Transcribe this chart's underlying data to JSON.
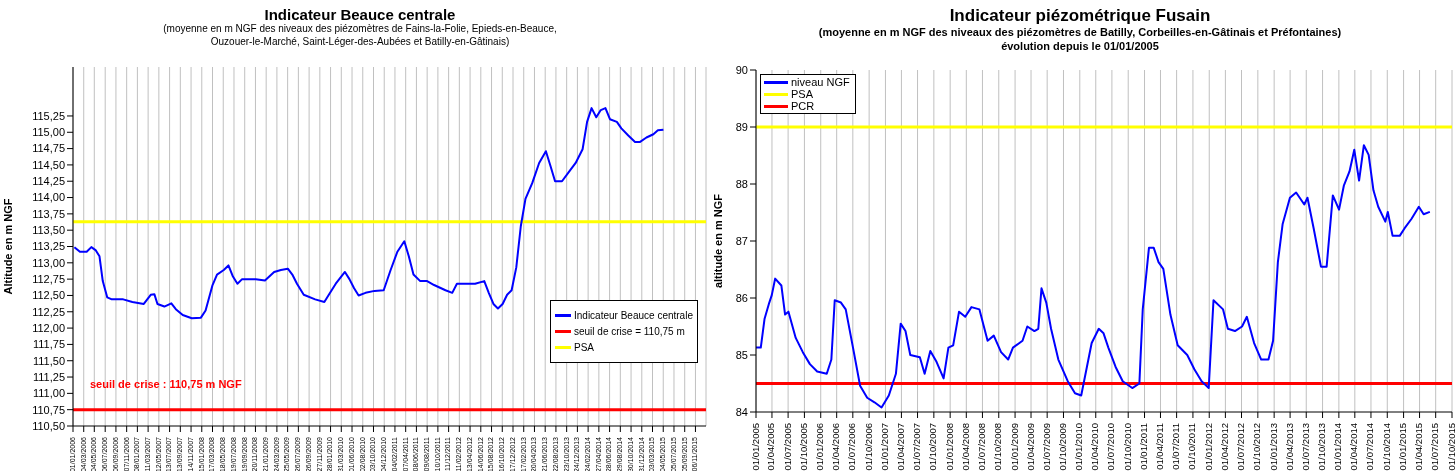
{
  "chart_data": [
    {
      "type": "line",
      "title": "Indicateur Beauce centrale",
      "subtitle": "(moyenne en m NGF des niveaux des piézomètres de Fains-la-Folie, Epieds-en-Beauce, Ouzouer-le-Marché, Saint-Léger-des-Aubées et Batilly-en-Gâtinais)",
      "ylabel": "Altitude en m NGF",
      "grid": "x",
      "legend": "bottom right",
      "annotations": [
        "seuil de crise : 110,75 m NGF"
      ],
      "xlim": [
        "2006-01-01",
        "2016-01-06"
      ],
      "ylim": [
        110.5,
        116
      ],
      "yticks": [
        {
          "value": 110.5,
          "label": "110,50"
        },
        {
          "value": 110.75,
          "label": "110,75"
        },
        {
          "value": 111,
          "label": "111,00"
        },
        {
          "value": 111.25,
          "label": "111,25"
        },
        {
          "value": 111.5,
          "label": "111,50"
        },
        {
          "value": 111.75,
          "label": "111,75"
        },
        {
          "value": 112,
          "label": "112,00"
        },
        {
          "value": 112.25,
          "label": "112,25"
        },
        {
          "value": 112.5,
          "label": "112,50"
        },
        {
          "value": 112.75,
          "label": "112,75"
        },
        {
          "value": 113,
          "label": "113,00"
        },
        {
          "value": 113.25,
          "label": "113,25"
        },
        {
          "value": 113.5,
          "label": "113,50"
        },
        {
          "value": 113.75,
          "label": "113,75"
        },
        {
          "value": 114,
          "label": "114,00"
        },
        {
          "value": 114.25,
          "label": "114,25"
        },
        {
          "value": 114.5,
          "label": "114,50"
        },
        {
          "value": 114.75,
          "label": "114,75"
        },
        {
          "value": 115,
          "label": "115,00"
        },
        {
          "value": 115.25,
          "label": "115,25"
        }
      ],
      "xticks": [
        {
          "value": "2006-01-01",
          "label": "01/01/2006"
        },
        {
          "value": "2006-03-04",
          "label": "04/03/2006"
        },
        {
          "value": "2006-05-04",
          "label": "04/05/2006"
        },
        {
          "value": "2006-07-06",
          "label": "06/07/2006"
        },
        {
          "value": "2006-09-06",
          "label": "06/09/2006"
        },
        {
          "value": "2006-11-07",
          "label": "07/11/2006"
        },
        {
          "value": "2007-01-08",
          "label": "08/01/2007"
        },
        {
          "value": "2007-03-11",
          "label": "11/03/2007"
        },
        {
          "value": "2007-05-12",
          "label": "12/05/2007"
        },
        {
          "value": "2007-07-13",
          "label": "13/07/2007"
        },
        {
          "value": "2007-09-13",
          "label": "13/09/2007"
        },
        {
          "value": "2007-11-14",
          "label": "14/11/2007"
        },
        {
          "value": "2008-01-15",
          "label": "15/01/2008"
        },
        {
          "value": "2008-03-17",
          "label": "17/03/2008"
        },
        {
          "value": "2008-05-18",
          "label": "18/05/2008"
        },
        {
          "value": "2008-07-19",
          "label": "19/07/2008"
        },
        {
          "value": "2008-09-19",
          "label": "19/09/2008"
        },
        {
          "value": "2008-11-20",
          "label": "20/11/2008"
        },
        {
          "value": "2009-01-21",
          "label": "21/01/2009"
        },
        {
          "value": "2009-03-24",
          "label": "24/03/2009"
        },
        {
          "value": "2009-05-25",
          "label": "25/05/2009"
        },
        {
          "value": "2009-07-26",
          "label": "26/07/2009"
        },
        {
          "value": "2009-09-26",
          "label": "26/09/2009"
        },
        {
          "value": "2009-11-27",
          "label": "27/11/2009"
        },
        {
          "value": "2010-01-28",
          "label": "28/01/2010"
        },
        {
          "value": "2010-03-31",
          "label": "31/03/2010"
        },
        {
          "value": "2010-06-01",
          "label": "01/06/2010"
        },
        {
          "value": "2010-08-02",
          "label": "02/08/2010"
        },
        {
          "value": "2010-10-03",
          "label": "03/10/2010"
        },
        {
          "value": "2010-12-04",
          "label": "04/12/2010"
        },
        {
          "value": "2011-02-04",
          "label": "04/02/2011"
        },
        {
          "value": "2011-04-07",
          "label": "07/04/2011"
        },
        {
          "value": "2011-06-08",
          "label": "08/06/2011"
        },
        {
          "value": "2011-08-09",
          "label": "09/08/2011"
        },
        {
          "value": "2011-10-10",
          "label": "10/10/2011"
        },
        {
          "value": "2011-12-11",
          "label": "11/12/2011"
        },
        {
          "value": "2012-02-11",
          "label": "11/02/2012"
        },
        {
          "value": "2012-04-13",
          "label": "13/04/2012"
        },
        {
          "value": "2012-06-14",
          "label": "14/06/2012"
        },
        {
          "value": "2012-08-15",
          "label": "15/08/2012"
        },
        {
          "value": "2012-10-16",
          "label": "16/10/2012"
        },
        {
          "value": "2012-12-17",
          "label": "17/12/2012"
        },
        {
          "value": "2013-02-17",
          "label": "17/02/2013"
        },
        {
          "value": "2013-04-20",
          "label": "20/04/2013"
        },
        {
          "value": "2013-06-21",
          "label": "21/06/2013"
        },
        {
          "value": "2013-08-22",
          "label": "22/08/2013"
        },
        {
          "value": "2013-10-23",
          "label": "23/10/2013"
        },
        {
          "value": "2013-12-24",
          "label": "24/12/2013"
        },
        {
          "value": "2014-02-24",
          "label": "24/02/2014"
        },
        {
          "value": "2014-04-27",
          "label": "27/04/2014"
        },
        {
          "value": "2014-06-28",
          "label": "28/06/2014"
        },
        {
          "value": "2014-08-29",
          "label": "29/08/2014"
        },
        {
          "value": "2014-10-30",
          "label": "30/10/2014"
        },
        {
          "value": "2014-12-31",
          "label": "31/12/2014"
        },
        {
          "value": "2015-03-03",
          "label": "03/03/2015"
        },
        {
          "value": "2015-05-04",
          "label": "04/05/2015"
        },
        {
          "value": "2015-07-05",
          "label": "05/07/2015"
        },
        {
          "value": "2015-09-05",
          "label": "05/09/2015"
        },
        {
          "value": "2015-11-06",
          "label": "06/11/2015"
        }
      ],
      "ref_lines": [
        {
          "axis": "y",
          "value": 110.75,
          "label": "seuil de crise = 110,75 m",
          "color": "#ff0000"
        },
        {
          "axis": "y",
          "value": 113.63,
          "label": "PSA",
          "color": "#ffff00"
        }
      ],
      "series": [
        {
          "name": "Indicateur Beauce centrale",
          "color": "#0000ff",
          "x": [
            "2006-01-09",
            "2006-02-10",
            "2006-03-21",
            "2006-04-17",
            "2006-05-13",
            "2006-06-03",
            "2006-06-22",
            "2006-07-18",
            "2006-08-13",
            "2006-10-18",
            "2006-12-10",
            "2007-02-14",
            "2007-03-26",
            "2007-04-16",
            "2007-05-04",
            "2007-06-13",
            "2007-07-23",
            "2007-08-18",
            "2007-09-27",
            "2007-11-18",
            "2008-01-10",
            "2008-02-06",
            "2008-03-16",
            "2008-04-12",
            "2008-05-21",
            "2008-06-17",
            "2008-07-13",
            "2008-08-08",
            "2008-09-04",
            "2008-11-22",
            "2009-01-14",
            "2009-03-08",
            "2009-04-16",
            "2009-05-26",
            "2009-06-21",
            "2009-07-18",
            "2009-08-26",
            "2009-10-31",
            "2009-12-23",
            "2010-01-18",
            "2010-02-27",
            "2010-04-21",
            "2010-05-17",
            "2010-06-13",
            "2010-07-09",
            "2010-08-18",
            "2010-10-09",
            "2010-12-01",
            "2011-01-10",
            "2011-02-18",
            "2011-03-30",
            "2011-04-25",
            "2011-05-22",
            "2011-06-30",
            "2011-08-09",
            "2011-09-18",
            "2011-11-23",
            "2012-01-01",
            "2012-01-28",
            "2012-04-03",
            "2012-05-12",
            "2012-07-04",
            "2012-07-30",
            "2012-08-26",
            "2012-09-21",
            "2012-10-18",
            "2012-11-13",
            "2012-12-09",
            "2013-01-05",
            "2013-01-31",
            "2013-02-27",
            "2013-04-07",
            "2013-05-17",
            "2013-06-25",
            "2013-07-22",
            "2013-08-17",
            "2013-09-26",
            "2013-11-04",
            "2013-12-14",
            "2014-01-23",
            "2014-02-18",
            "2014-03-16",
            "2014-04-12",
            "2014-05-08",
            "2014-06-04",
            "2014-06-30",
            "2014-08-09",
            "2014-09-04",
            "2014-10-14",
            "2014-11-22",
            "2014-12-19",
            "2015-01-27",
            "2015-03-08",
            "2015-04-03",
            "2015-05-05"
          ],
          "values": [
            113.24,
            113.17,
            113.17,
            113.24,
            113.19,
            113.1,
            112.72,
            112.47,
            112.44,
            112.44,
            112.4,
            112.37,
            112.51,
            112.52,
            112.37,
            112.33,
            112.38,
            112.29,
            112.2,
            112.15,
            112.16,
            112.27,
            112.65,
            112.82,
            112.89,
            112.96,
            112.79,
            112.68,
            112.75,
            112.75,
            112.73,
            112.86,
            112.89,
            112.91,
            112.82,
            112.68,
            112.51,
            112.44,
            112.4,
            112.51,
            112.68,
            112.86,
            112.75,
            112.61,
            112.5,
            112.54,
            112.57,
            112.58,
            112.89,
            113.17,
            113.33,
            113.1,
            112.82,
            112.72,
            112.72,
            112.66,
            112.58,
            112.54,
            112.68,
            112.68,
            112.68,
            112.72,
            112.54,
            112.37,
            112.3,
            112.37,
            112.51,
            112.58,
            112.93,
            113.56,
            113.98,
            114.22,
            114.53,
            114.71,
            114.48,
            114.25,
            114.25,
            114.39,
            114.53,
            114.74,
            115.16,
            115.37,
            115.23,
            115.34,
            115.37,
            115.2,
            115.16,
            115.06,
            114.95,
            114.85,
            114.85,
            114.92,
            114.97,
            115.03,
            115.04
          ]
        }
      ]
    },
    {
      "type": "line",
      "title": "Indicateur piézométrique Fusain",
      "subtitle": "(moyenne en m NGF des niveaux des piézomètres de Batilly, Corbeilles-en-Gâtinais et Préfontaines)\névolution depuis le 01/01/2005",
      "ylabel": "altitude en m NGF",
      "grid": "x",
      "legend": "top left",
      "xlim": [
        "2005-01-01",
        "2015-10-01"
      ],
      "ylim": [
        84,
        90
      ],
      "yticks": [
        84,
        85,
        86,
        87,
        88,
        89,
        90
      ],
      "xticks": [
        {
          "value": "2005-01-01",
          "label": "01/01/2005"
        },
        {
          "value": "2005-04-01",
          "label": "01/04/2005"
        },
        {
          "value": "2005-07-01",
          "label": "01/07/2005"
        },
        {
          "value": "2005-10-01",
          "label": "01/10/2005"
        },
        {
          "value": "2006-01-01",
          "label": "01/01/2006"
        },
        {
          "value": "2006-04-01",
          "label": "01/04/2006"
        },
        {
          "value": "2006-07-01",
          "label": "01/07/2006"
        },
        {
          "value": "2006-10-01",
          "label": "01/10/2006"
        },
        {
          "value": "2007-01-01",
          "label": "01/01/2007"
        },
        {
          "value": "2007-04-01",
          "label": "01/04/2007"
        },
        {
          "value": "2007-07-01",
          "label": "01/07/2007"
        },
        {
          "value": "2007-10-01",
          "label": "01/10/2007"
        },
        {
          "value": "2008-01-01",
          "label": "01/01/2008"
        },
        {
          "value": "2008-04-01",
          "label": "01/04/2008"
        },
        {
          "value": "2008-07-01",
          "label": "01/07/2008"
        },
        {
          "value": "2008-10-01",
          "label": "01/10/2008"
        },
        {
          "value": "2009-01-01",
          "label": "01/01/2009"
        },
        {
          "value": "2009-04-01",
          "label": "01/04/2009"
        },
        {
          "value": "2009-07-01",
          "label": "01/07/2009"
        },
        {
          "value": "2009-10-01",
          "label": "01/10/2009"
        },
        {
          "value": "2010-01-01",
          "label": "01/01/2010"
        },
        {
          "value": "2010-04-01",
          "label": "01/04/2010"
        },
        {
          "value": "2010-07-01",
          "label": "01/07/2010"
        },
        {
          "value": "2010-10-01",
          "label": "01/10/2010"
        },
        {
          "value": "2011-01-01",
          "label": "01/01/2011"
        },
        {
          "value": "2011-04-01",
          "label": "01/04/2011"
        },
        {
          "value": "2011-07-01",
          "label": "01/07/2011"
        },
        {
          "value": "2011-10-01",
          "label": "01/10/2011"
        },
        {
          "value": "2012-01-01",
          "label": "01/01/2012"
        },
        {
          "value": "2012-04-01",
          "label": "01/04/2012"
        },
        {
          "value": "2012-07-01",
          "label": "01/07/2012"
        },
        {
          "value": "2012-10-01",
          "label": "01/10/2012"
        },
        {
          "value": "2013-01-01",
          "label": "01/01/2013"
        },
        {
          "value": "2013-04-01",
          "label": "01/04/2013"
        },
        {
          "value": "2013-07-01",
          "label": "01/07/2013"
        },
        {
          "value": "2013-10-01",
          "label": "01/10/2013"
        },
        {
          "value": "2014-01-01",
          "label": "01/01/2014"
        },
        {
          "value": "2014-04-01",
          "label": "01/04/2014"
        },
        {
          "value": "2014-07-01",
          "label": "01/07/2014"
        },
        {
          "value": "2014-10-01",
          "label": "01/10/2014"
        },
        {
          "value": "2015-01-01",
          "label": "01/01/2015"
        },
        {
          "value": "2015-04-01",
          "label": "01/04/2015"
        },
        {
          "value": "2015-07-01",
          "label": "01/07/2015"
        },
        {
          "value": "2015-10-01",
          "label": "01/10/2015"
        }
      ],
      "ref_lines": [
        {
          "axis": "y",
          "value": 89,
          "label": "PSA",
          "color": "#ffff00"
        },
        {
          "axis": "y",
          "value": 84.5,
          "label": "PCR",
          "color": "#ff0000"
        }
      ],
      "series": [
        {
          "name": "niveau NGF",
          "color": "#0000ff",
          "x": [
            "2005-01-01",
            "2005-01-28",
            "2005-02-18",
            "2005-03-17",
            "2005-03-31",
            "2005-04-19",
            "2005-05-24",
            "2005-06-14",
            "2005-07-03",
            "2005-08-13",
            "2005-09-22",
            "2005-11-01",
            "2005-12-12",
            "2006-02-04",
            "2006-03-02",
            "2006-03-21",
            "2006-04-25",
            "2006-05-22",
            "2006-07-02",
            "2006-08-11",
            "2006-09-20",
            "2006-10-31",
            "2006-12-10",
            "2007-01-20",
            "2007-03-01",
            "2007-03-28",
            "2007-04-24",
            "2007-05-21",
            "2007-07-14",
            "2007-08-10",
            "2007-09-11",
            "2007-10-16",
            "2007-11-25",
            "2007-12-22",
            "2008-01-18",
            "2008-02-20",
            "2008-03-26",
            "2008-04-30",
            "2008-06-14",
            "2008-07-30",
            "2008-09-03",
            "2008-10-14",
            "2008-11-23",
            "2008-12-20",
            "2009-02-12",
            "2009-03-11",
            "2009-04-20",
            "2009-05-12",
            "2009-05-30",
            "2009-06-26",
            "2009-07-23",
            "2009-09-02",
            "2009-10-25",
            "2009-12-05",
            "2010-01-09",
            "2010-02-10",
            "2010-03-09",
            "2010-04-18",
            "2010-05-15",
            "2010-06-11",
            "2010-07-22",
            "2010-08-31",
            "2010-10-24",
            "2010-12-03",
            "2010-12-22",
            "2011-01-26",
            "2011-02-22",
            "2011-03-21",
            "2011-04-17",
            "2011-05-27",
            "2011-07-07",
            "2011-08-30",
            "2011-10-09",
            "2011-11-19",
            "2011-12-29",
            "2012-01-25",
            "2012-03-19",
            "2012-04-15",
            "2012-05-25",
            "2012-07-04",
            "2012-07-31",
            "2012-09-10",
            "2012-10-20",
            "2012-11-30",
            "2012-12-26",
            "2013-01-22",
            "2013-02-18",
            "2013-03-31",
            "2013-05-05",
            "2013-06-20",
            "2013-07-08",
            "2013-08-12",
            "2013-09-22",
            "2013-10-24",
            "2013-11-28",
            "2014-01-02",
            "2014-01-29",
            "2014-03-02",
            "2014-03-29",
            "2014-04-25",
            "2014-05-22",
            "2014-06-18",
            "2014-07-15",
            "2014-08-11",
            "2014-09-20",
            "2014-10-04",
            "2014-10-31",
            "2014-12-10",
            "2015-01-06",
            "2015-02-15",
            "2015-03-28",
            "2015-04-24",
            "2015-05-29"
          ],
          "values": [
            85.13,
            85.13,
            85.63,
            85.92,
            86.05,
            86.34,
            86.22,
            85.71,
            85.76,
            85.3,
            85.05,
            84.84,
            84.71,
            84.67,
            84.92,
            85.96,
            85.92,
            85.8,
            85.13,
            84.46,
            84.25,
            84.17,
            84.08,
            84.29,
            84.67,
            85.55,
            85.42,
            85.0,
            84.96,
            84.67,
            85.07,
            84.88,
            84.59,
            85.13,
            85.17,
            85.76,
            85.67,
            85.84,
            85.8,
            85.25,
            85.34,
            85.05,
            84.92,
            85.13,
            85.25,
            85.5,
            85.42,
            85.46,
            86.17,
            85.92,
            85.46,
            84.92,
            84.54,
            84.33,
            84.29,
            84.79,
            85.21,
            85.46,
            85.38,
            85.13,
            84.79,
            84.54,
            84.42,
            84.5,
            85.8,
            86.88,
            86.88,
            86.63,
            86.51,
            85.71,
            85.17,
            85.0,
            84.75,
            84.54,
            84.42,
            85.96,
            85.8,
            85.46,
            85.42,
            85.5,
            85.67,
            85.21,
            84.92,
            84.92,
            85.25,
            86.63,
            87.3,
            87.76,
            87.85,
            87.64,
            87.76,
            87.22,
            86.55,
            86.55,
            87.8,
            87.55,
            87.97,
            88.22,
            88.6,
            88.06,
            88.68,
            88.51,
            87.89,
            87.6,
            87.34,
            87.51,
            87.09,
            87.09,
            87.22,
            87.39,
            87.6,
            87.47,
            87.51
          ]
        }
      ]
    }
  ]
}
